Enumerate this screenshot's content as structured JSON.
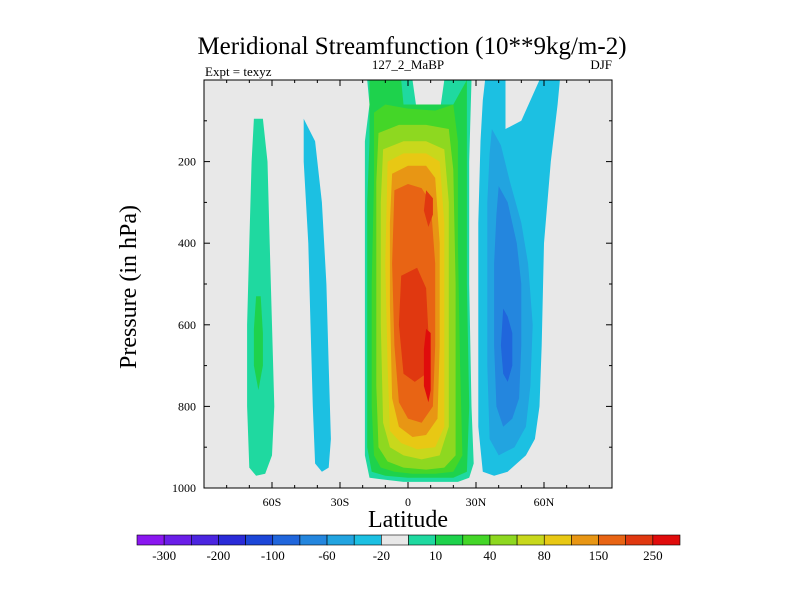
{
  "chart_data": {
    "type": "contour",
    "title": "Meridional Streamfunction (10**9kg/m-2)",
    "left_subtitle": "Expt = texyz",
    "center_subtitle": "127_2_MaBP",
    "right_subtitle": "DJF",
    "xlabel": "Latitude",
    "ylabel": "Pressure (in hPa)",
    "xlim": [
      -90,
      90
    ],
    "ylim": [
      1000,
      0
    ],
    "y_inverted": true,
    "x_ticks": [
      {
        "value": -60,
        "label": "60S"
      },
      {
        "value": -30,
        "label": "30S"
      },
      {
        "value": 0,
        "label": "0"
      },
      {
        "value": 30,
        "label": "30N"
      },
      {
        "value": 60,
        "label": "60N"
      }
    ],
    "y_ticks": [
      {
        "value": 200,
        "label": "200"
      },
      {
        "value": 400,
        "label": "400"
      },
      {
        "value": 600,
        "label": "600"
      },
      {
        "value": 800,
        "label": "800"
      },
      {
        "value": 1000,
        "label": "1000"
      }
    ],
    "background_color": "#e8e8e8",
    "colorbar": {
      "levels": [
        -300,
        -250,
        -200,
        -150,
        -100,
        -80,
        -60,
        -40,
        -20,
        -10,
        10,
        20,
        40,
        60,
        80,
        100,
        150,
        200,
        250
      ],
      "labels": [
        "-300",
        "-200",
        "-100",
        "-60",
        "-20",
        "10",
        "40",
        "80",
        "150",
        "250"
      ],
      "colors": [
        "#8a17f0",
        "#6a1ee8",
        "#4b25e0",
        "#2a2bd8",
        "#1c46d8",
        "#2066dc",
        "#2486de",
        "#22a4e0",
        "#1cc0e2",
        "#e8e8e8",
        "#1fd9a0",
        "#1ed24c",
        "#44d628",
        "#8ed820",
        "#c8d81c",
        "#e8c814",
        "#e89614",
        "#e86414",
        "#e03810",
        "#e00c0c"
      ]
    },
    "contours": [
      {
        "name": "sh-outer-cell",
        "color": "#1fd9a0",
        "points": [
          [
            -68,
            95
          ],
          [
            -64,
            95
          ],
          [
            -62,
            200
          ],
          [
            -61,
            400
          ],
          [
            -60,
            600
          ],
          [
            -59,
            800
          ],
          [
            -60,
            920
          ],
          [
            -63,
            965
          ],
          [
            -67,
            970
          ],
          [
            -70,
            950
          ],
          [
            -71,
            800
          ],
          [
            -71,
            600
          ],
          [
            -70,
            400
          ],
          [
            -69,
            200
          ]
        ]
      },
      {
        "name": "sh-outer-core",
        "color": "#1ed24c",
        "points": [
          [
            -67,
            530
          ],
          [
            -65,
            530
          ],
          [
            -64,
            620
          ],
          [
            -64,
            700
          ],
          [
            -66,
            760
          ],
          [
            -68,
            700
          ],
          [
            -68,
            610
          ]
        ]
      },
      {
        "name": "sh-mid-cell",
        "color": "#1cc0e2",
        "points": [
          [
            -46,
            95
          ],
          [
            -41,
            150
          ],
          [
            -38,
            300
          ],
          [
            -36,
            500
          ],
          [
            -35,
            700
          ],
          [
            -34,
            880
          ],
          [
            -35,
            950
          ],
          [
            -38,
            960
          ],
          [
            -41,
            940
          ],
          [
            -42,
            800
          ],
          [
            -43,
            600
          ],
          [
            -44,
            400
          ],
          [
            -46,
            200
          ]
        ]
      },
      {
        "name": "hadley-10",
        "color": "#1fd9a0",
        "points": [
          [
            -18,
            0
          ],
          [
            2,
            0
          ],
          [
            4,
            80
          ],
          [
            14,
            80
          ],
          [
            16,
            0
          ],
          [
            28,
            0
          ],
          [
            27,
            200
          ],
          [
            27,
            500
          ],
          [
            28,
            800
          ],
          [
            29,
            940
          ],
          [
            27,
            975
          ],
          [
            22,
            985
          ],
          [
            14,
            985
          ],
          [
            6,
            985
          ],
          [
            -2,
            985
          ],
          [
            -10,
            980
          ],
          [
            -17,
            975
          ],
          [
            -19,
            920
          ],
          [
            -19,
            800
          ],
          [
            -19,
            500
          ],
          [
            -19,
            300
          ],
          [
            -19,
            150
          ],
          [
            -17,
            60
          ]
        ]
      },
      {
        "name": "hadley-20",
        "color": "#1ed24c",
        "points": [
          [
            -17,
            0
          ],
          [
            -3,
            0
          ],
          [
            -2,
            60
          ],
          [
            20,
            60
          ],
          [
            26,
            0
          ],
          [
            26,
            500
          ],
          [
            27,
            800
          ],
          [
            26,
            960
          ],
          [
            20,
            975
          ],
          [
            10,
            975
          ],
          [
            0,
            975
          ],
          [
            -10,
            970
          ],
          [
            -16,
            960
          ],
          [
            -18,
            900
          ],
          [
            -18,
            600
          ],
          [
            -18,
            300
          ],
          [
            -17,
            150
          ]
        ]
      },
      {
        "name": "hadley-40",
        "color": "#44d628",
        "points": [
          [
            -15,
            80
          ],
          [
            -10,
            60
          ],
          [
            0,
            70
          ],
          [
            12,
            75
          ],
          [
            20,
            60
          ],
          [
            22,
            150
          ],
          [
            22,
            400
          ],
          [
            23,
            700
          ],
          [
            24,
            920
          ],
          [
            20,
            960
          ],
          [
            12,
            965
          ],
          [
            2,
            965
          ],
          [
            -6,
            960
          ],
          [
            -12,
            950
          ],
          [
            -15,
            920
          ],
          [
            -16,
            800
          ],
          [
            -16,
            500
          ],
          [
            -15,
            250
          ]
        ]
      },
      {
        "name": "hadley-60",
        "color": "#8ed820",
        "points": [
          [
            -13,
            130
          ],
          [
            -4,
            110
          ],
          [
            8,
            110
          ],
          [
            18,
            120
          ],
          [
            20,
            220
          ],
          [
            21,
            500
          ],
          [
            21,
            800
          ],
          [
            21,
            920
          ],
          [
            16,
            950
          ],
          [
            8,
            955
          ],
          [
            -2,
            950
          ],
          [
            -9,
            935
          ],
          [
            -13,
            900
          ],
          [
            -14,
            750
          ],
          [
            -14,
            500
          ],
          [
            -14,
            250
          ]
        ]
      },
      {
        "name": "hadley-80",
        "color": "#c8d81c",
        "points": [
          [
            -11,
            170
          ],
          [
            -2,
            150
          ],
          [
            8,
            150
          ],
          [
            16,
            170
          ],
          [
            18,
            300
          ],
          [
            18,
            600
          ],
          [
            18,
            850
          ],
          [
            14,
            920
          ],
          [
            6,
            930
          ],
          [
            -2,
            920
          ],
          [
            -8,
            900
          ],
          [
            -11,
            840
          ],
          [
            -12,
            600
          ],
          [
            -12,
            300
          ]
        ]
      },
      {
        "name": "hadley-100",
        "color": "#e8c814",
        "points": [
          [
            -9,
            200
          ],
          [
            -2,
            180
          ],
          [
            8,
            180
          ],
          [
            14,
            200
          ],
          [
            16,
            350
          ],
          [
            16,
            650
          ],
          [
            16,
            850
          ],
          [
            12,
            900
          ],
          [
            4,
            905
          ],
          [
            -3,
            890
          ],
          [
            -8,
            860
          ],
          [
            -9,
            700
          ],
          [
            -10,
            450
          ]
        ]
      },
      {
        "name": "hadley-150",
        "color": "#e89614",
        "points": [
          [
            -7,
            230
          ],
          [
            0,
            210
          ],
          [
            8,
            210
          ],
          [
            12,
            240
          ],
          [
            14,
            400
          ],
          [
            14,
            650
          ],
          [
            13,
            830
          ],
          [
            8,
            870
          ],
          [
            2,
            875
          ],
          [
            -4,
            850
          ],
          [
            -7,
            780
          ],
          [
            -8,
            550
          ],
          [
            -8,
            350
          ]
        ]
      },
      {
        "name": "hadley-200",
        "color": "#e86414",
        "points": [
          [
            -6,
            270
          ],
          [
            0,
            255
          ],
          [
            6,
            265
          ],
          [
            10,
            300
          ],
          [
            12,
            450
          ],
          [
            12,
            650
          ],
          [
            11,
            800
          ],
          [
            6,
            840
          ],
          [
            0,
            830
          ],
          [
            -4,
            790
          ],
          [
            -6,
            650
          ],
          [
            -7,
            450
          ]
        ]
      },
      {
        "name": "hadley-250-a",
        "color": "#e03810",
        "points": [
          [
            -3,
            480
          ],
          [
            4,
            460
          ],
          [
            8,
            510
          ],
          [
            9,
            620
          ],
          [
            8,
            720
          ],
          [
            3,
            740
          ],
          [
            -2,
            720
          ],
          [
            -4,
            600
          ]
        ]
      },
      {
        "name": "hadley-250-b",
        "color": "#e03810",
        "points": [
          [
            8,
            270
          ],
          [
            11,
            290
          ],
          [
            11,
            330
          ],
          [
            9,
            360
          ],
          [
            7,
            320
          ]
        ]
      },
      {
        "name": "hadley-300",
        "color": "#e00c0c",
        "points": [
          [
            8,
            610
          ],
          [
            10,
            620
          ],
          [
            10,
            760
          ],
          [
            9,
            790
          ],
          [
            7,
            750
          ],
          [
            7,
            660
          ]
        ]
      },
      {
        "name": "nh-ferrel-10",
        "color": "#1cc0e2",
        "points": [
          [
            34,
            0
          ],
          [
            43,
            0
          ],
          [
            43,
            120
          ],
          [
            50,
            100
          ],
          [
            58,
            0
          ],
          [
            67,
            0
          ],
          [
            66,
            60
          ],
          [
            63,
            200
          ],
          [
            60,
            400
          ],
          [
            59,
            650
          ],
          [
            58,
            800
          ],
          [
            56,
            880
          ],
          [
            52,
            920
          ],
          [
            44,
            960
          ],
          [
            38,
            970
          ],
          [
            33,
            960
          ],
          [
            31,
            850
          ],
          [
            31,
            600
          ],
          [
            31,
            350
          ],
          [
            32,
            150
          ],
          [
            33,
            50
          ]
        ]
      },
      {
        "name": "nh-ferrel-20",
        "color": "#22a4e0",
        "points": [
          [
            37,
            120
          ],
          [
            41,
            160
          ],
          [
            45,
            250
          ],
          [
            50,
            350
          ],
          [
            53,
            450
          ],
          [
            55,
            600
          ],
          [
            54,
            750
          ],
          [
            52,
            850
          ],
          [
            47,
            900
          ],
          [
            40,
            920
          ],
          [
            36,
            880
          ],
          [
            35,
            700
          ],
          [
            35,
            500
          ],
          [
            35,
            300
          ],
          [
            36,
            180
          ]
        ]
      },
      {
        "name": "nh-ferrel-40",
        "color": "#2486de",
        "points": [
          [
            40,
            260
          ],
          [
            44,
            300
          ],
          [
            48,
            400
          ],
          [
            50,
            500
          ],
          [
            50,
            650
          ],
          [
            49,
            780
          ],
          [
            46,
            830
          ],
          [
            42,
            850
          ],
          [
            39,
            800
          ],
          [
            38,
            650
          ],
          [
            38,
            450
          ],
          [
            39,
            330
          ]
        ]
      },
      {
        "name": "nh-ferrel-60",
        "color": "#2066dc",
        "points": [
          [
            42,
            560
          ],
          [
            44,
            580
          ],
          [
            46,
            620
          ],
          [
            46,
            700
          ],
          [
            44,
            740
          ],
          [
            42,
            720
          ],
          [
            41,
            650
          ]
        ]
      }
    ]
  }
}
